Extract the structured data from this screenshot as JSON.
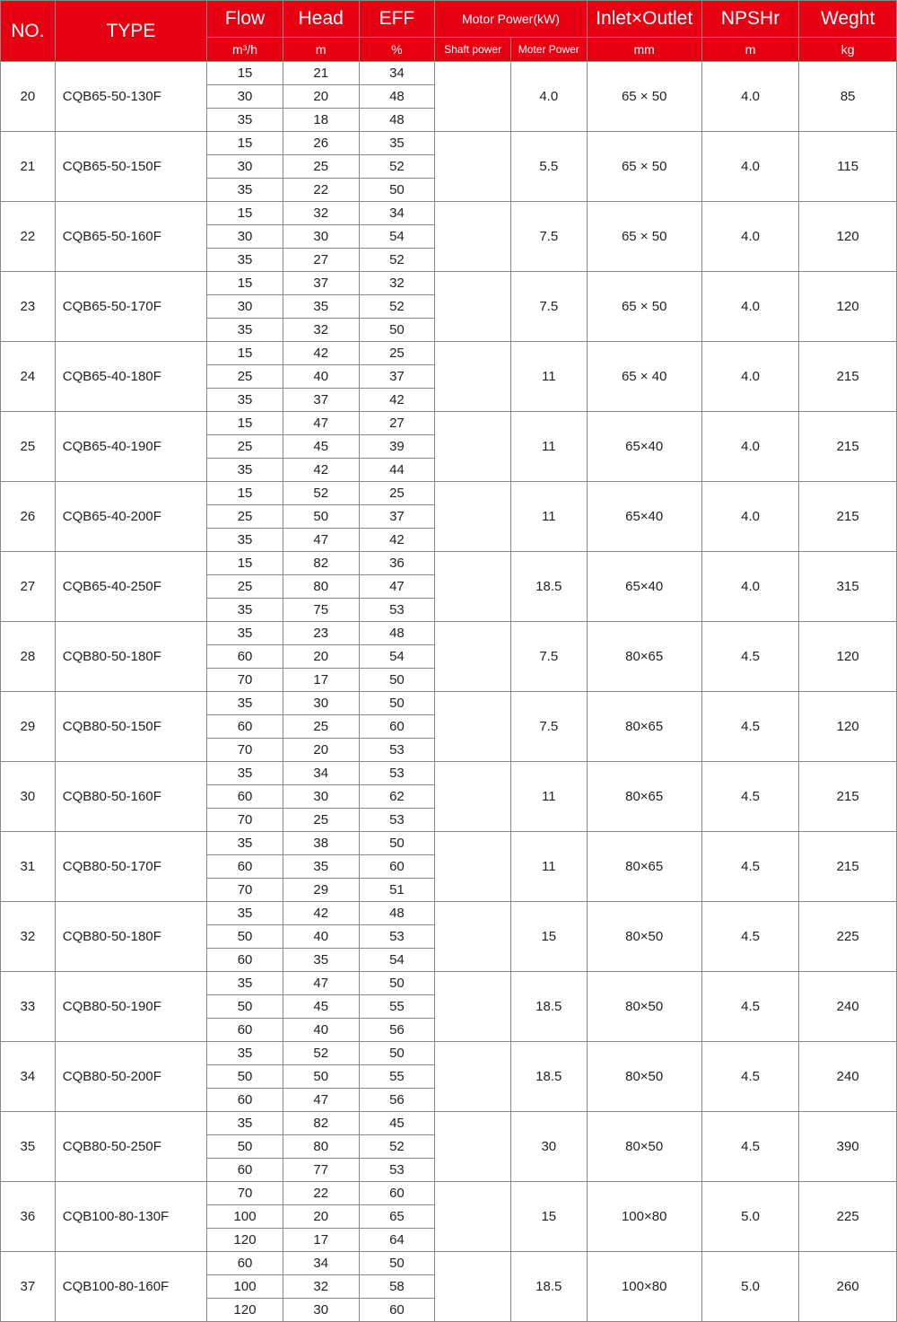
{
  "header": {
    "no": "NO.",
    "type": "TYPE",
    "flow": "Flow",
    "flow_u": "m³/h",
    "head": "Head",
    "head_u": "m",
    "eff": "EFF",
    "eff_u": "%",
    "mpg": "Motor Power(kW)",
    "shaft": "Shaft power",
    "motor": "Moter Power",
    "io": "Inlet×Outlet",
    "io_u": "mm",
    "np": "NPSHr",
    "np_u": "m",
    "wt": "Weght",
    "wt_u": "kg"
  },
  "rows": [
    {
      "no": "20",
      "type": "CQB65-50-130F",
      "sub": [
        [
          "15",
          "21",
          "34"
        ],
        [
          "30",
          "20",
          "48"
        ],
        [
          "35",
          "18",
          "48"
        ]
      ],
      "mp": "4.0",
      "io": "65 × 50",
      "np": "4.0",
      "wt": "85"
    },
    {
      "no": "21",
      "type": "CQB65-50-150F",
      "sub": [
        [
          "15",
          "26",
          "35"
        ],
        [
          "30",
          "25",
          "52"
        ],
        [
          "35",
          "22",
          "50"
        ]
      ],
      "mp": "5.5",
      "io": "65 × 50",
      "np": "4.0",
      "wt": "115"
    },
    {
      "no": "22",
      "type": "CQB65-50-160F",
      "sub": [
        [
          "15",
          "32",
          "34"
        ],
        [
          "30",
          "30",
          "54"
        ],
        [
          "35",
          "27",
          "52"
        ]
      ],
      "mp": "7.5",
      "io": "65 × 50",
      "np": "4.0",
      "wt": "120"
    },
    {
      "no": "23",
      "type": "CQB65-50-170F",
      "sub": [
        [
          "15",
          "37",
          "32"
        ],
        [
          "30",
          "35",
          "52"
        ],
        [
          "35",
          "32",
          "50"
        ]
      ],
      "mp": "7.5",
      "io": "65 × 50",
      "np": "4.0",
      "wt": "120"
    },
    {
      "no": "24",
      "type": "CQB65-40-180F",
      "sub": [
        [
          "15",
          "42",
          "25"
        ],
        [
          "25",
          "40",
          "37"
        ],
        [
          "35",
          "37",
          "42"
        ]
      ],
      "mp": "11",
      "io": "65 × 40",
      "np": "4.0",
      "wt": "215"
    },
    {
      "no": "25",
      "type": "CQB65-40-190F",
      "sub": [
        [
          "15",
          "47",
          "27"
        ],
        [
          "25",
          "45",
          "39"
        ],
        [
          "35",
          "42",
          "44"
        ]
      ],
      "mp": "11",
      "io": "65×40",
      "np": "4.0",
      "wt": "215"
    },
    {
      "no": "26",
      "type": "CQB65-40-200F",
      "sub": [
        [
          "15",
          "52",
          "25"
        ],
        [
          "25",
          "50",
          "37"
        ],
        [
          "35",
          "47",
          "42"
        ]
      ],
      "mp": "11",
      "io": "65×40",
      "np": "4.0",
      "wt": "215"
    },
    {
      "no": "27",
      "type": "CQB65-40-250F",
      "sub": [
        [
          "15",
          "82",
          "36"
        ],
        [
          "25",
          "80",
          "47"
        ],
        [
          "35",
          "75",
          "53"
        ]
      ],
      "mp": "18.5",
      "io": "65×40",
      "np": "4.0",
      "wt": "315"
    },
    {
      "no": "28",
      "type": "CQB80-50-180F",
      "sub": [
        [
          "35",
          "23",
          "48"
        ],
        [
          "60",
          "20",
          "54"
        ],
        [
          "70",
          "17",
          "50"
        ]
      ],
      "mp": "7.5",
      "io": "80×65",
      "np": "4.5",
      "wt": "120"
    },
    {
      "no": "29",
      "type": "CQB80-50-150F",
      "sub": [
        [
          "35",
          "30",
          "50"
        ],
        [
          "60",
          "25",
          "60"
        ],
        [
          "70",
          "20",
          "53"
        ]
      ],
      "mp": "7.5",
      "io": "80×65",
      "np": "4.5",
      "wt": "120"
    },
    {
      "no": "30",
      "type": "CQB80-50-160F",
      "sub": [
        [
          "35",
          "34",
          "53"
        ],
        [
          "60",
          "30",
          "62"
        ],
        [
          "70",
          "25",
          "53"
        ]
      ],
      "mp": "11",
      "io": "80×65",
      "np": "4.5",
      "wt": "215"
    },
    {
      "no": "31",
      "type": "CQB80-50-170F",
      "sub": [
        [
          "35",
          "38",
          "50"
        ],
        [
          "60",
          "35",
          "60"
        ],
        [
          "70",
          "29",
          "51"
        ]
      ],
      "mp": "11",
      "io": "80×65",
      "np": "4.5",
      "wt": "215"
    },
    {
      "no": "32",
      "type": "CQB80-50-180F",
      "sub": [
        [
          "35",
          "42",
          "48"
        ],
        [
          "50",
          "40",
          "53"
        ],
        [
          "60",
          "35",
          "54"
        ]
      ],
      "mp": "15",
      "io": "80×50",
      "np": "4.5",
      "wt": "225"
    },
    {
      "no": "33",
      "type": "CQB80-50-190F",
      "sub": [
        [
          "35",
          "47",
          "50"
        ],
        [
          "50",
          "45",
          "55"
        ],
        [
          "60",
          "40",
          "56"
        ]
      ],
      "mp": "18.5",
      "io": "80×50",
      "np": "4.5",
      "wt": "240"
    },
    {
      "no": "34",
      "type": "CQB80-50-200F",
      "sub": [
        [
          "35",
          "52",
          "50"
        ],
        [
          "50",
          "50",
          "55"
        ],
        [
          "60",
          "47",
          "56"
        ]
      ],
      "mp": "18.5",
      "io": "80×50",
      "np": "4.5",
      "wt": "240"
    },
    {
      "no": "35",
      "type": "CQB80-50-250F",
      "sub": [
        [
          "35",
          "82",
          "45"
        ],
        [
          "50",
          "80",
          "52"
        ],
        [
          "60",
          "77",
          "53"
        ]
      ],
      "mp": "30",
      "io": "80×50",
      "np": "4.5",
      "wt": "390"
    },
    {
      "no": "36",
      "type": "CQB100-80-130F",
      "sub": [
        [
          "70",
          "22",
          "60"
        ],
        [
          "100",
          "20",
          "65"
        ],
        [
          "120",
          "17",
          "64"
        ]
      ],
      "mp": "15",
      "io": "100×80",
      "np": "5.0",
      "wt": "225"
    },
    {
      "no": "37",
      "type": "CQB100-80-160F",
      "sub": [
        [
          "60",
          "34",
          "50"
        ],
        [
          "100",
          "32",
          "58"
        ],
        [
          "120",
          "30",
          "60"
        ]
      ],
      "mp": "18.5",
      "io": "100×80",
      "np": "5.0",
      "wt": "260"
    }
  ],
  "style": {
    "header_bg": "#e60012",
    "header_fg": "#ffffff",
    "border": "#888888",
    "text": "#222222"
  }
}
